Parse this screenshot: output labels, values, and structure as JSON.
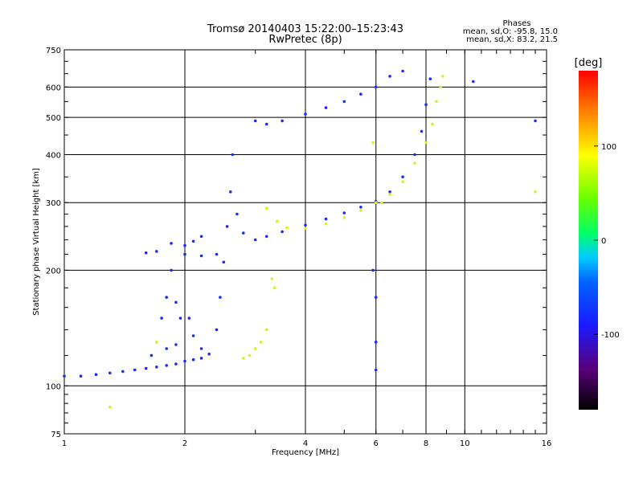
{
  "chart_data": {
    "type": "scatter",
    "title": "Tromsø 20140403 15:22:00–15:23:43",
    "subtitle": "RwPretec (8p)",
    "xlabel": "Frequency [MHz]",
    "ylabel": "Stationary phase Virtual Height [km]",
    "x_scale": "log",
    "y_scale": "log",
    "xlim": [
      1,
      16
    ],
    "ylim": [
      75,
      750
    ],
    "x_ticks": [
      1,
      2,
      4,
      6,
      8,
      10,
      16
    ],
    "x_tick_labels": [
      "1",
      "2",
      "4",
      "6",
      "8",
      "10",
      "16"
    ],
    "y_ticks": [
      75,
      100,
      200,
      300,
      400,
      500,
      600,
      750
    ],
    "y_tick_labels": [
      "75",
      "100",
      "200",
      "300",
      "400",
      "500",
      "600",
      "750"
    ],
    "grid": true,
    "stats": {
      "heading": "Phases",
      "line_o": "mean, sd,O: -95.8, 15.0",
      "line_x": "mean, sd,X:  83.2, 21.5"
    },
    "colorbar": {
      "title": "[deg]",
      "range": [
        -180,
        180
      ],
      "ticks": [
        100,
        0,
        -100
      ],
      "tick_labels": [
        "100",
        "0",
        "-100"
      ]
    },
    "series": [
      {
        "mode": "O",
        "phase_deg": -100,
        "points": [
          [
            1.0,
            106
          ],
          [
            1.1,
            106
          ],
          [
            1.2,
            107
          ],
          [
            1.3,
            108
          ],
          [
            1.4,
            109
          ],
          [
            1.5,
            110
          ],
          [
            1.6,
            111
          ],
          [
            1.7,
            112
          ],
          [
            1.8,
            113
          ],
          [
            1.9,
            114
          ],
          [
            2.0,
            116
          ],
          [
            2.1,
            117
          ],
          [
            2.2,
            118
          ],
          [
            2.3,
            121
          ],
          [
            2.4,
            140
          ],
          [
            2.45,
            170
          ],
          [
            2.5,
            210
          ],
          [
            2.55,
            260
          ],
          [
            2.6,
            320
          ],
          [
            2.63,
            400
          ],
          [
            2.7,
            280
          ],
          [
            2.8,
            250
          ],
          [
            3.0,
            240
          ],
          [
            3.2,
            245
          ],
          [
            3.5,
            252
          ],
          [
            4.0,
            262
          ],
          [
            4.5,
            272
          ],
          [
            5.0,
            282
          ],
          [
            5.5,
            292
          ],
          [
            6.0,
            302
          ],
          [
            6.5,
            320
          ],
          [
            7.0,
            350
          ],
          [
            7.5,
            400
          ],
          [
            7.8,
            460
          ],
          [
            8.0,
            540
          ],
          [
            8.2,
            630
          ],
          [
            3.0,
            490
          ],
          [
            3.2,
            480
          ],
          [
            3.5,
            490
          ],
          [
            4.0,
            510
          ],
          [
            4.5,
            530
          ],
          [
            5.0,
            550
          ],
          [
            5.5,
            575
          ],
          [
            6.0,
            600
          ],
          [
            6.5,
            640
          ],
          [
            7.0,
            660
          ],
          [
            1.6,
            222
          ],
          [
            1.7,
            224
          ],
          [
            1.85,
            235
          ],
          [
            2.0,
            232
          ],
          [
            2.1,
            238
          ],
          [
            2.2,
            245
          ],
          [
            2.0,
            220
          ],
          [
            2.2,
            218
          ],
          [
            2.4,
            220
          ],
          [
            1.85,
            200
          ],
          [
            1.8,
            170
          ],
          [
            1.75,
            150
          ],
          [
            1.9,
            165
          ],
          [
            1.95,
            150
          ],
          [
            2.05,
            150
          ],
          [
            2.1,
            135
          ],
          [
            2.2,
            125
          ],
          [
            1.65,
            120
          ],
          [
            1.8,
            125
          ],
          [
            1.9,
            128
          ],
          [
            10.5,
            620
          ],
          [
            15.0,
            490
          ],
          [
            6.0,
            170
          ],
          [
            6.0,
            130
          ],
          [
            6.0,
            110
          ],
          [
            5.9,
            200
          ]
        ]
      },
      {
        "mode": "X",
        "phase_deg": 100,
        "points": [
          [
            3.2,
            290
          ],
          [
            3.4,
            268
          ],
          [
            3.6,
            258
          ],
          [
            4.0,
            257
          ],
          [
            4.5,
            264
          ],
          [
            5.0,
            274
          ],
          [
            5.5,
            286
          ],
          [
            6.0,
            300
          ],
          [
            6.5,
            315
          ],
          [
            7.0,
            340
          ],
          [
            7.5,
            380
          ],
          [
            8.0,
            430
          ],
          [
            8.3,
            480
          ],
          [
            8.5,
            550
          ],
          [
            8.7,
            600
          ],
          [
            8.8,
            640
          ],
          [
            2.8,
            118
          ],
          [
            2.9,
            120
          ],
          [
            3.0,
            125
          ],
          [
            3.1,
            130
          ],
          [
            3.2,
            140
          ],
          [
            3.3,
            190
          ],
          [
            3.35,
            180
          ],
          [
            1.3,
            88
          ],
          [
            1.7,
            130
          ],
          [
            5.9,
            430
          ],
          [
            6.2,
            300
          ],
          [
            15.0,
            320
          ]
        ]
      }
    ]
  }
}
